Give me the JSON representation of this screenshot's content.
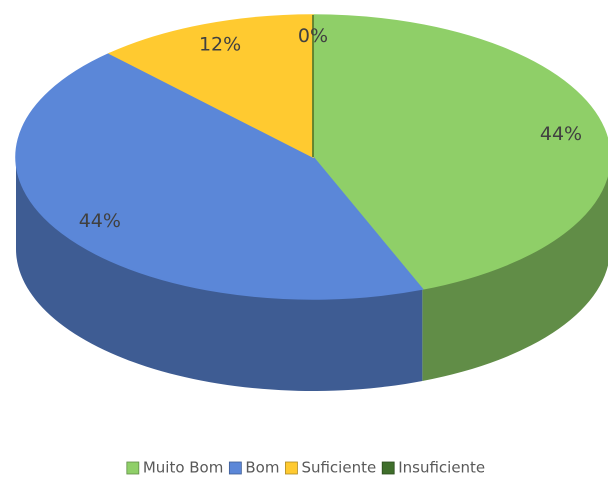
{
  "chart_data": {
    "type": "pie",
    "categories": [
      "Muito Bom",
      "Bom",
      "Suficiente",
      "Insuficiente"
    ],
    "values": [
      44,
      44,
      12,
      0
    ],
    "value_labels": [
      "44%",
      "44%",
      "12%",
      "0%"
    ],
    "colors": [
      "#8fcf68",
      "#5b87d8",
      "#ffca30",
      "#3f6e2b"
    ],
    "legend": "bottom"
  }
}
